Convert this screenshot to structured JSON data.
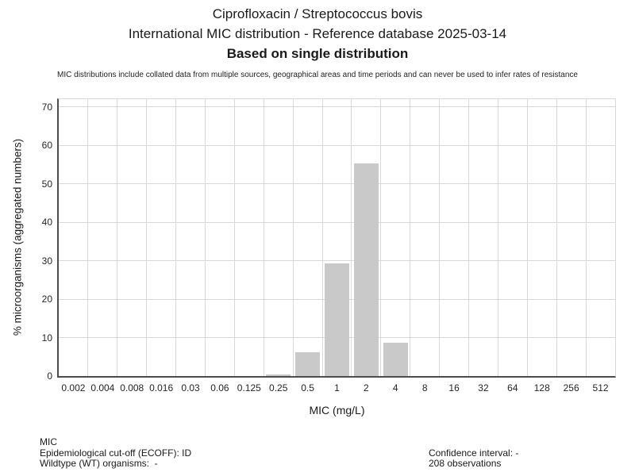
{
  "header": {
    "title_line1": "Ciprofloxacin / Streptococcus bovis",
    "title_line2": "International MIC distribution - Reference database 2025-03-14",
    "title_line3": "Based on single distribution",
    "note": "MIC distributions include collated data from multiple sources, geographical areas and time periods and can never be used to infer rates of resistance"
  },
  "footer": {
    "left": [
      "MIC",
      "Epidemiological cut-off (ECOFF): ID",
      "Wildtype (WT) organisms:  -"
    ],
    "right": [
      "Confidence interval: -",
      "208 observations"
    ]
  },
  "colors": {
    "bar": "#c9c9c9",
    "gridline": "#d9d9d9",
    "axis": "#4d4d4d",
    "text": "#1a1a1a"
  },
  "chart_data": {
    "type": "bar",
    "title": "Ciprofloxacin / Streptococcus bovis — International MIC distribution - Reference database 2025-03-14 — Based on single distribution",
    "categories": [
      "0.002",
      "0.004",
      "0.008",
      "0.016",
      "0.03",
      "0.06",
      "0.125",
      "0.25",
      "0.5",
      "1",
      "2",
      "4",
      "8",
      "16",
      "32",
      "64",
      "128",
      "256",
      "512"
    ],
    "values": [
      0,
      0,
      0,
      0,
      0,
      0,
      0,
      0.48,
      6.25,
      29.33,
      55.29,
      8.65,
      0,
      0,
      0,
      0,
      0,
      0,
      0
    ],
    "xlabel": "MIC (mg/L)",
    "ylabel": "% microorganisms (aggregated numbers)",
    "ylim": [
      0,
      72
    ],
    "yticks": [
      0,
      10,
      20,
      30,
      40,
      50,
      60,
      70
    ],
    "grid": true,
    "legend": "none",
    "bar_color": "#c9c9c9",
    "observations_label": "208 observations"
  }
}
